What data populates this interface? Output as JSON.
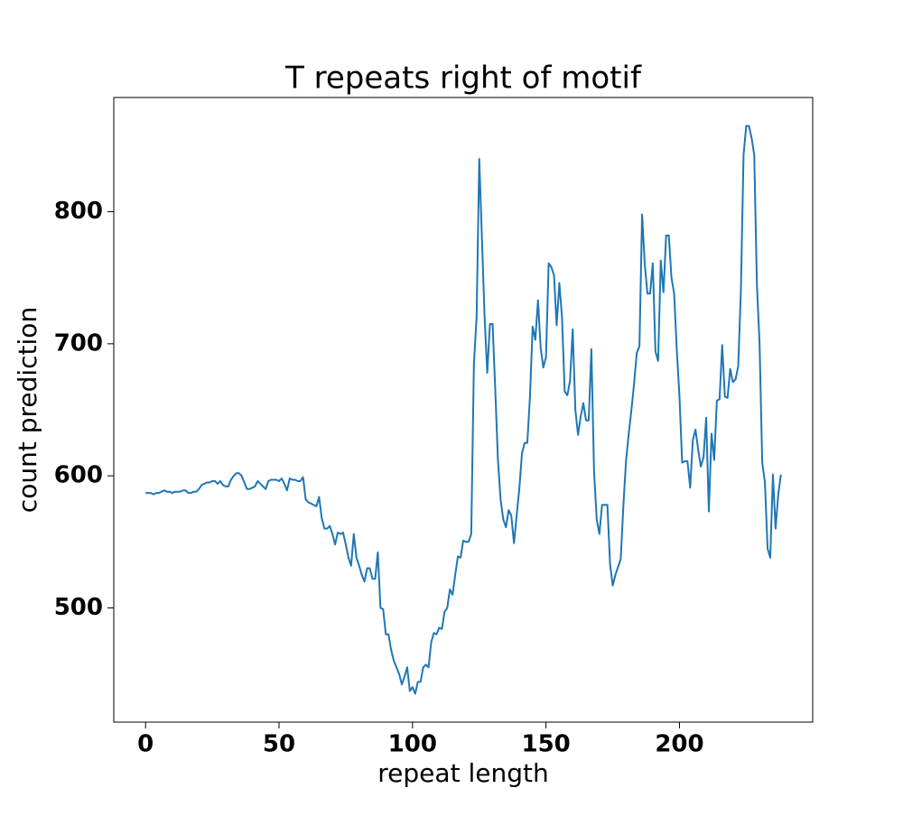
{
  "chart_data": {
    "type": "line",
    "title": "T repeats right of motif",
    "x_label": "repeat length",
    "y_label": "count prediction",
    "x": [
      0,
      1,
      2,
      3,
      4,
      5,
      6,
      7,
      8,
      9,
      10,
      11,
      12,
      13,
      14,
      15,
      16,
      17,
      18,
      19,
      20,
      21,
      22,
      23,
      24,
      25,
      26,
      27,
      28,
      29,
      30,
      31,
      32,
      33,
      34,
      35,
      36,
      37,
      38,
      39,
      40,
      41,
      42,
      43,
      44,
      45,
      46,
      47,
      48,
      49,
      50,
      51,
      52,
      53,
      54,
      55,
      56,
      57,
      58,
      59,
      60,
      61,
      62,
      63,
      64,
      65,
      66,
      67,
      68,
      69,
      70,
      71,
      72,
      73,
      74,
      75,
      76,
      77,
      78,
      79,
      80,
      81,
      82,
      83,
      84,
      85,
      86,
      87,
      88,
      89,
      90,
      91,
      92,
      93,
      94,
      95,
      96,
      97,
      98,
      99,
      100,
      101,
      102,
      103,
      104,
      105,
      106,
      107,
      108,
      109,
      110,
      111,
      112,
      113,
      114,
      115,
      116,
      117,
      118,
      119,
      120,
      121,
      122,
      123,
      124,
      125,
      126,
      127,
      128,
      129,
      130,
      131,
      132,
      133,
      134,
      135,
      136,
      137,
      138,
      139,
      140,
      141,
      142,
      143,
      144,
      145,
      146,
      147,
      148,
      149,
      150,
      151,
      152,
      153,
      154,
      155,
      156,
      157,
      158,
      159,
      160,
      161,
      162,
      163,
      164,
      165,
      166,
      167,
      168,
      169,
      170,
      171,
      172,
      173,
      174,
      175,
      176,
      177,
      178,
      179,
      180,
      181,
      182,
      183,
      184,
      185,
      186,
      187,
      188,
      189,
      190,
      191,
      192,
      193,
      194,
      195,
      196,
      197,
      198,
      199,
      200,
      201,
      202,
      203,
      204,
      205,
      206,
      207,
      208,
      209,
      210,
      211,
      212,
      213,
      214,
      215,
      216,
      217,
      218,
      219,
      220,
      221,
      222,
      223,
      224,
      225,
      226,
      227,
      228,
      229,
      230,
      231,
      232,
      233,
      234,
      235,
      236,
      237,
      238
    ],
    "series": [
      {
        "name": "count prediction",
        "color": "#1f77b4",
        "values": [
          587,
          587,
          587,
          586,
          587,
          587,
          588,
          589,
          588,
          588,
          587,
          588,
          588,
          588,
          589,
          589,
          587,
          587,
          588,
          588,
          590,
          593,
          594,
          595,
          595,
          596,
          596,
          594,
          596,
          593,
          592,
          592,
          597,
          600,
          602,
          602,
          600,
          595,
          590,
          590,
          591,
          592,
          596,
          594,
          592,
          590,
          596,
          597,
          597,
          597,
          596,
          598,
          594,
          589,
          598,
          597,
          597,
          596,
          596,
          599,
          582,
          580,
          579,
          578,
          577,
          584,
          568,
          560,
          560,
          562,
          556,
          548,
          557,
          556,
          557,
          548,
          538,
          532,
          556,
          538,
          532,
          525,
          520,
          530,
          530,
          522,
          522,
          542,
          500,
          499,
          480,
          480,
          468,
          460,
          455,
          450,
          442,
          448,
          455,
          437,
          440,
          435,
          444,
          444,
          455,
          457,
          455,
          474,
          481,
          480,
          485,
          484,
          497,
          500,
          514,
          510,
          525,
          539,
          538,
          551,
          550,
          550,
          556,
          685,
          720,
          840,
          780,
          720,
          678,
          715,
          715,
          665,
          612,
          582,
          567,
          561,
          574,
          570,
          549,
          570,
          590,
          617,
          625,
          625,
          660,
          713,
          703,
          733,
          697,
          682,
          690,
          761,
          758,
          752,
          714,
          746,
          720,
          664,
          661,
          672,
          711,
          650,
          631,
          645,
          655,
          642,
          642,
          696,
          603,
          567,
          556,
          578,
          578,
          578,
          533,
          517,
          525,
          531,
          537,
          578,
          612,
          632,
          650,
          670,
          693,
          698,
          798,
          760,
          738,
          738,
          761,
          694,
          687,
          763,
          739,
          782,
          782,
          750,
          738,
          695,
          660,
          610,
          611,
          611,
          591,
          627,
          635,
          620,
          607,
          614,
          644,
          573,
          632,
          612,
          657,
          658,
          699,
          660,
          659,
          681,
          671,
          673,
          683,
          740,
          843,
          865,
          865,
          856,
          843,
          745,
          700,
          610,
          595,
          545,
          538,
          601,
          560,
          586,
          601
        ]
      }
    ],
    "xlim": [
      -11.9,
      249.9
    ],
    "ylim": [
      413.5,
      886.5
    ],
    "xticks": [
      0,
      50,
      100,
      150,
      200
    ],
    "yticks": [
      500,
      600,
      700,
      800
    ]
  }
}
